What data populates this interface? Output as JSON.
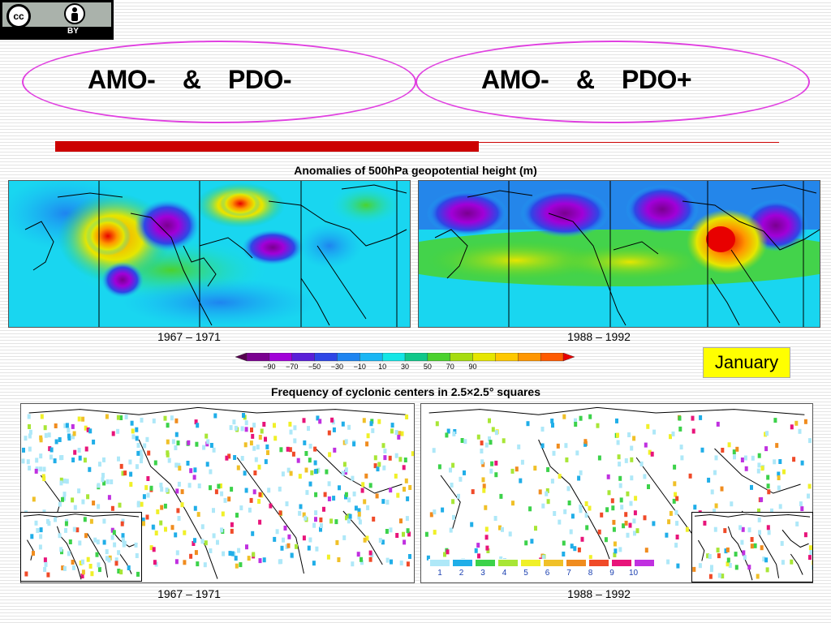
{
  "license": {
    "badge_text": "cc",
    "by_label": "BY"
  },
  "phases": [
    {
      "label": "AMO-    &    PDO-"
    },
    {
      "label": "AMO-    &    PDO+"
    }
  ],
  "anomaly_section": {
    "title": "Anomalies of 500hPa geopotential height (m)",
    "left_period": "1967 – 1971",
    "right_period": "1988 – 1992",
    "colorbar": {
      "ticks": [
        "−90",
        "−70",
        "−50",
        "−30",
        "−10",
        "10",
        "30",
        "50",
        "70",
        "90"
      ],
      "colors": [
        "#55004f",
        "#7a0090",
        "#a100d8",
        "#5a1fd8",
        "#2e46e6",
        "#1e84f0",
        "#19b6f4",
        "#14e6e6",
        "#10c88a",
        "#4bd22e",
        "#a6dc10",
        "#e6e600",
        "#ffc800",
        "#ff9600",
        "#ff5a00",
        "#e80000"
      ]
    }
  },
  "month_label": "January",
  "cyclone_section": {
    "title": "Frequency of cyclonic centers in 2.5×2.5° squares",
    "left_period": "1967 – 1971",
    "right_period": "1988 – 1992",
    "legend": {
      "ticks": [
        "1",
        "2",
        "3",
        "4",
        "5",
        "6",
        "7",
        "8",
        "9",
        "10"
      ],
      "colors": [
        "#aee8f8",
        "#20aee8",
        "#3cd24a",
        "#a8e636",
        "#f0f028",
        "#f0c028",
        "#f08c1e",
        "#f04a28",
        "#e8147a",
        "#c030e0"
      ]
    }
  },
  "colors": {
    "ellipse": "#e040e0",
    "accent_bar": "#cc0000",
    "month_bg": "#ffff00"
  }
}
